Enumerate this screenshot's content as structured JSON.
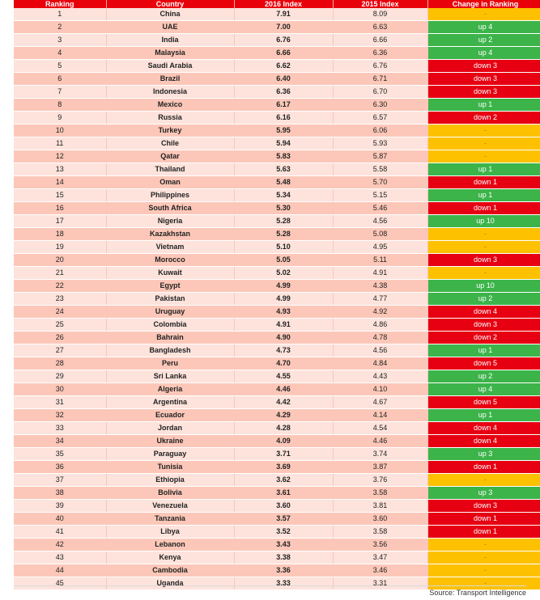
{
  "headers": [
    "Ranking",
    "Country",
    "2016 Index",
    "2015 Index",
    "Change in Ranking"
  ],
  "rows": [
    [
      "1",
      "China",
      "7.91",
      "8.09",
      "-"
    ],
    [
      "2",
      "UAE",
      "7.00",
      "6.63",
      "up 4"
    ],
    [
      "3",
      "India",
      "6.76",
      "6.66",
      "up 2"
    ],
    [
      "4",
      "Malaysia",
      "6.66",
      "6.36",
      "up 4"
    ],
    [
      "5",
      "Saudi Arabia",
      "6.62",
      "6.76",
      "down 3"
    ],
    [
      "6",
      "Brazil",
      "6.40",
      "6.71",
      "down 3"
    ],
    [
      "7",
      "Indonesia",
      "6.36",
      "6.70",
      "down 3"
    ],
    [
      "8",
      "Mexico",
      "6.17",
      "6.30",
      "up 1"
    ],
    [
      "9",
      "Russia",
      "6.16",
      "6.57",
      "down 2"
    ],
    [
      "10",
      "Turkey",
      "5.95",
      "6.06",
      "-"
    ],
    [
      "11",
      "Chile",
      "5.94",
      "5.93",
      "-"
    ],
    [
      "12",
      "Qatar",
      "5.83",
      "5.87",
      "-"
    ],
    [
      "13",
      "Thailand",
      "5.63",
      "5.58",
      "up 1"
    ],
    [
      "14",
      "Oman",
      "5.48",
      "5.70",
      "down 1"
    ],
    [
      "15",
      "Philippines",
      "5.34",
      "5.15",
      "up 1"
    ],
    [
      "16",
      "South Africa",
      "5.30",
      "5.46",
      "down 1"
    ],
    [
      "17",
      "Nigeria",
      "5.28",
      "4.56",
      "up 10"
    ],
    [
      "18",
      "Kazakhstan",
      "5.28",
      "5.08",
      "-"
    ],
    [
      "19",
      "Vietnam",
      "5.10",
      "4.95",
      "-"
    ],
    [
      "20",
      "Morocco",
      "5.05",
      "5.11",
      "down 3"
    ],
    [
      "21",
      "Kuwait",
      "5.02",
      "4.91",
      "-"
    ],
    [
      "22",
      "Egypt",
      "4.99",
      "4.38",
      "up 10"
    ],
    [
      "23",
      "Pakistan",
      "4.99",
      "4.77",
      "up 2"
    ],
    [
      "24",
      "Uruguay",
      "4.93",
      "4.92",
      "down 4"
    ],
    [
      "25",
      "Colombia",
      "4.91",
      "4.86",
      "down 3"
    ],
    [
      "26",
      "Bahrain",
      "4.90",
      "4.78",
      "down 2"
    ],
    [
      "27",
      "Bangladesh",
      "4.73",
      "4.56",
      "up 1"
    ],
    [
      "28",
      "Peru",
      "4.70",
      "4.84",
      "down 5"
    ],
    [
      "29",
      "Sri Lanka",
      "4.55",
      "4.43",
      "up 2"
    ],
    [
      "30",
      "Algeria",
      "4.46",
      "4.10",
      "up 4"
    ],
    [
      "31",
      "Argentina",
      "4.42",
      "4.67",
      "down 5"
    ],
    [
      "32",
      "Ecuador",
      "4.29",
      "4.14",
      "up 1"
    ],
    [
      "33",
      "Jordan",
      "4.28",
      "4.54",
      "down 4"
    ],
    [
      "34",
      "Ukraine",
      "4.09",
      "4.46",
      "down 4"
    ],
    [
      "35",
      "Paraguay",
      "3.71",
      "3.74",
      "up 3"
    ],
    [
      "36",
      "Tunisia",
      "3.69",
      "3.87",
      "down 1"
    ],
    [
      "37",
      "Ethiopia",
      "3.62",
      "3.76",
      "-"
    ],
    [
      "38",
      "Bolivia",
      "3.61",
      "3.58",
      "up 3"
    ],
    [
      "39",
      "Venezuela",
      "3.60",
      "3.81",
      "down 3"
    ],
    [
      "40",
      "Tanzania",
      "3.57",
      "3.60",
      "down 1"
    ],
    [
      "41",
      "Libya",
      "3.52",
      "3.58",
      "down 1"
    ],
    [
      "42",
      "Lebanon",
      "3.43",
      "3.56",
      "-"
    ],
    [
      "43",
      "Kenya",
      "3.38",
      "3.47",
      "-"
    ],
    [
      "44",
      "Cambodia",
      "3.36",
      "3.46",
      "-"
    ],
    [
      "45",
      "Uganda",
      "3.33",
      "3.31",
      "-"
    ]
  ],
  "source": "Source: Transport Intelligence",
  "colors": {
    "header": "#e8000b",
    "row_light": "#fde3dc",
    "row_dark": "#fcc7b8",
    "up": "#3cb44a",
    "down": "#e60012",
    "unchanged": "#fdc100"
  }
}
